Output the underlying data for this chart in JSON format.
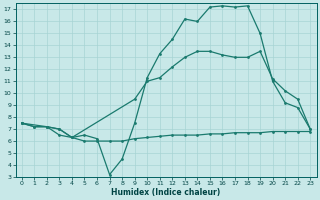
{
  "xlabel": "Humidex (Indice chaleur)",
  "bg_color": "#c8e8e8",
  "grid_color": "#a8d4d4",
  "line_color": "#1a7a6e",
  "xlim": [
    -0.5,
    23.5
  ],
  "ylim": [
    3,
    17.5
  ],
  "xticks": [
    0,
    1,
    2,
    3,
    4,
    5,
    6,
    7,
    8,
    9,
    10,
    11,
    12,
    13,
    14,
    15,
    16,
    17,
    18,
    19,
    20,
    21,
    22,
    23
  ],
  "yticks": [
    3,
    4,
    5,
    6,
    7,
    8,
    9,
    10,
    11,
    12,
    13,
    14,
    15,
    16,
    17
  ],
  "line1_x": [
    0,
    1,
    2,
    3,
    4,
    5,
    6,
    7,
    8,
    9,
    10,
    11,
    12,
    13,
    14,
    15,
    16,
    17,
    18,
    19,
    20,
    21,
    22,
    23
  ],
  "line1_y": [
    7.5,
    7.2,
    7.2,
    7.0,
    6.3,
    6.5,
    6.2,
    3.2,
    4.5,
    7.5,
    11.3,
    13.3,
    14.5,
    16.2,
    16.0,
    17.2,
    17.3,
    17.2,
    17.3,
    15.0,
    11.0,
    9.2,
    8.8,
    7.0
  ],
  "line2_x": [
    0,
    2,
    3,
    4,
    9,
    10,
    11,
    12,
    13,
    14,
    15,
    16,
    17,
    18,
    19,
    20,
    21,
    22,
    23
  ],
  "line2_y": [
    7.5,
    7.2,
    7.0,
    6.3,
    9.5,
    11.0,
    11.3,
    12.2,
    13.0,
    13.5,
    13.5,
    13.2,
    13.0,
    13.0,
    13.5,
    11.2,
    10.2,
    9.5,
    7.0
  ],
  "line3_x": [
    0,
    1,
    2,
    3,
    4,
    5,
    6,
    7,
    8,
    9,
    10,
    11,
    12,
    13,
    14,
    15,
    16,
    17,
    18,
    19,
    20,
    21,
    22,
    23
  ],
  "line3_y": [
    7.5,
    7.2,
    7.2,
    6.5,
    6.3,
    6.0,
    6.0,
    6.0,
    6.0,
    6.2,
    6.3,
    6.4,
    6.5,
    6.5,
    6.5,
    6.6,
    6.6,
    6.7,
    6.7,
    6.7,
    6.8,
    6.8,
    6.8,
    6.8
  ]
}
